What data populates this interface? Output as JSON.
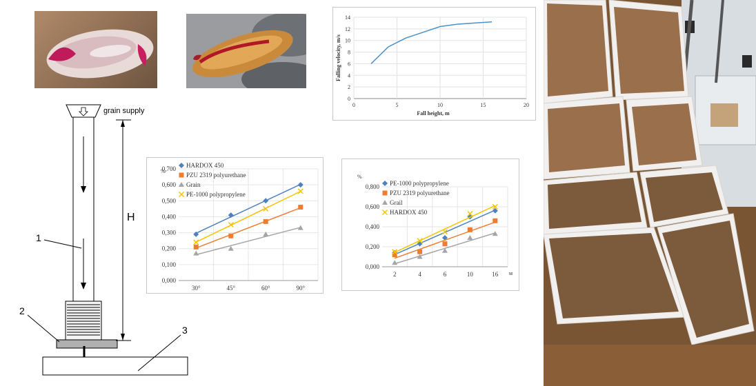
{
  "diagram": {
    "grain_supply": "grain supply",
    "height_label": "H",
    "part_labels": [
      "1",
      "2",
      "3"
    ]
  },
  "colors": {
    "blue": "#4f81bd",
    "orange": "#ed7d31",
    "gray": "#a5a5a5",
    "yellow": "#f5c400",
    "line": "#4a90c8"
  },
  "chart_data": [
    {
      "type": "line",
      "xlabel": "Fall height, m",
      "ylabel": "Falling velocity, m/s",
      "xlim": [
        0,
        20
      ],
      "ylim": [
        0,
        14
      ],
      "xticks": [
        "0",
        "5",
        "10",
        "15",
        "20"
      ],
      "yticks": [
        "0",
        "2",
        "4",
        "6",
        "8",
        "10",
        "12",
        "14"
      ],
      "grid": true,
      "series": [
        {
          "x": [
            2,
            4,
            6,
            8,
            10,
            12,
            14,
            16
          ],
          "y": [
            6.0,
            8.9,
            10.4,
            11.4,
            12.4,
            12.8,
            13.0,
            13.2
          ]
        }
      ]
    },
    {
      "type": "scatter",
      "unit": "%",
      "categories": [
        "30°",
        "45°",
        "60°",
        "90°"
      ],
      "yticks": [
        "0,000",
        "0,100",
        "0,200",
        "0,300",
        "0,400",
        "0,500",
        "0,600",
        "0,700"
      ],
      "ylim": [
        0,
        0.7
      ],
      "legend_position": "top-left",
      "series": [
        {
          "name": "HARDOX 450",
          "marker": "diamond",
          "color": "#4f81bd",
          "values": [
            0.29,
            0.41,
            0.5,
            0.6
          ]
        },
        {
          "name": "PZU 2319 polyurethane",
          "marker": "square",
          "color": "#ed7d31",
          "values": [
            0.21,
            0.28,
            0.37,
            0.46
          ]
        },
        {
          "name": "Grain",
          "marker": "triangle",
          "color": "#a5a5a5",
          "values": [
            0.17,
            0.2,
            0.29,
            0.33
          ]
        },
        {
          "name": "PE-1000 polypropylene",
          "marker": "x",
          "color": "#f5c400",
          "values": [
            0.24,
            0.35,
            0.45,
            0.56
          ]
        }
      ]
    },
    {
      "type": "scatter",
      "unit": "%",
      "x_unit": "м",
      "categories": [
        "2",
        "4",
        "6",
        "10",
        "16"
      ],
      "yticks": [
        "0,000",
        "0,200",
        "0,400",
        "0,600",
        "0,800"
      ],
      "ylim": [
        0,
        0.8
      ],
      "legend_position": "top-left",
      "series": [
        {
          "name": "PE-1000 polypropylene",
          "marker": "diamond",
          "color": "#4f81bd",
          "values": [
            0.14,
            0.23,
            0.29,
            0.5,
            0.56
          ]
        },
        {
          "name": "PZU 2319 polyurethane",
          "marker": "square",
          "color": "#ed7d31",
          "values": [
            0.12,
            0.15,
            0.23,
            0.37,
            0.46
          ]
        },
        {
          "name": "Grail",
          "marker": "triangle",
          "color": "#a5a5a5",
          "values": [
            0.04,
            0.1,
            0.16,
            0.29,
            0.33
          ]
        },
        {
          "name": "HARDOX 450",
          "marker": "x",
          "color": "#f5c400",
          "values": [
            0.15,
            0.26,
            0.35,
            0.53,
            0.6
          ]
        }
      ]
    }
  ]
}
